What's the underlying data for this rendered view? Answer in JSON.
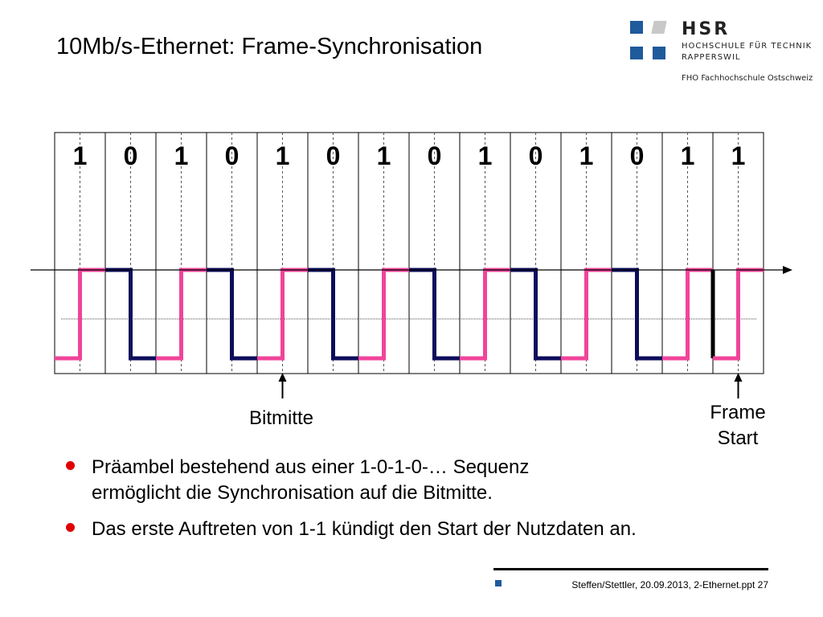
{
  "slide": {
    "title": "10Mb/s-Ethernet: Frame-Synchronisation"
  },
  "logo": {
    "acronym": "HSR",
    "line1": "HOCHSCHULE FÜR TECHNIK",
    "line2": "RAPPERSWIL",
    "line3": "FHO Fachhochschule Ostschweiz",
    "colors": {
      "blue": "#1f5a9c",
      "grey": "#c8c8c8"
    }
  },
  "diagram": {
    "bits": [
      "1",
      "0",
      "1",
      "0",
      "1",
      "0",
      "1",
      "0",
      "1",
      "0",
      "1",
      "0",
      "1",
      "1"
    ],
    "colors": {
      "one": "#f0449a",
      "zero": "#0d0d5c",
      "grid": "#000000"
    },
    "bitmitte_label": "Bitmitte",
    "frame_start_label_1": "Frame",
    "frame_start_label_2": "Start"
  },
  "bullets": [
    {
      "line1": "Präambel bestehend aus einer 1-0-1-0-… Sequenz",
      "line2": "ermöglicht die Synchronisation auf die Bitmitte."
    },
    {
      "line1": "Das erste Auftreten von 1-1 kündigt den Start der Nutzdaten an.",
      "line2": ""
    }
  ],
  "footer": {
    "text": "Steffen/Stettler, 20.09.2013, 2-Ethernet.ppt 27"
  }
}
